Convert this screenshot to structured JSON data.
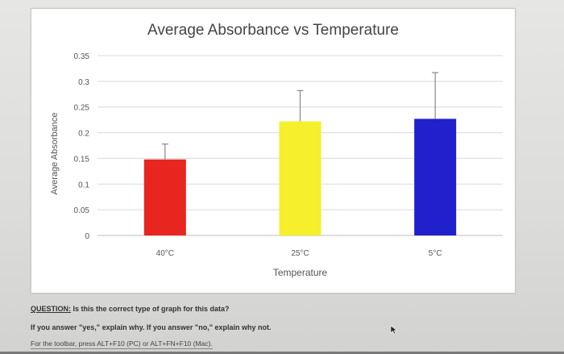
{
  "chart_data": {
    "type": "bar",
    "title": "Average Absorbance vs Temperature",
    "xlabel": "Temperature",
    "ylabel": "Average Absorbance",
    "categories": [
      "40°C",
      "25°C",
      "5°C"
    ],
    "values": [
      0.148,
      0.222,
      0.227
    ],
    "error": [
      0.03,
      0.06,
      0.09
    ],
    "colors": [
      "#e8261f",
      "#f5ef2c",
      "#2020cc"
    ],
    "ylim": [
      0,
      0.35
    ],
    "yticks": [
      "0",
      "0.05",
      "0.1",
      "0.15",
      "0.2",
      "0.25",
      "0.3",
      "0.35"
    ],
    "grid": true
  },
  "question": {
    "label": "QUESTION:",
    "text": " Is this the correct type of graph for this data?"
  },
  "instruction": "If you answer \"yes,\" explain why. If you answer \"no,\" explain why not.",
  "toolbar_hint": "For the toolbar, press ALT+F10 (PC) or ALT+FN+F10 (Mac).",
  "icons": {
    "cursor": "mouse-pointer-icon"
  }
}
